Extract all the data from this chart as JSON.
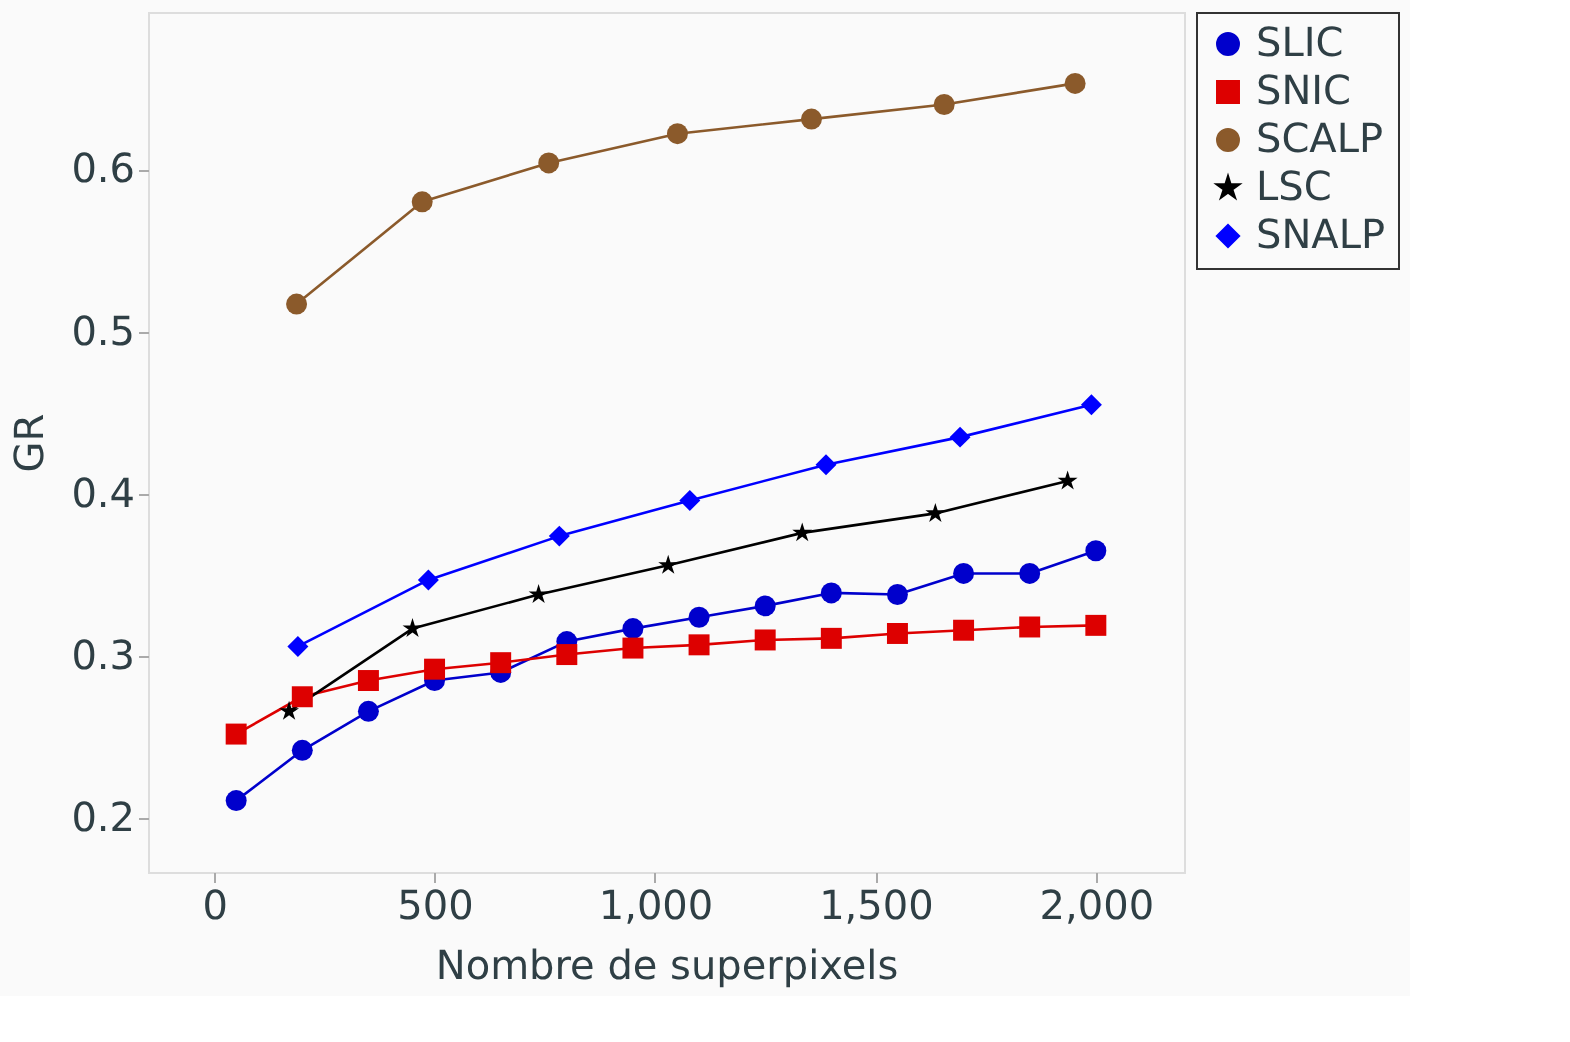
{
  "chart_data": {
    "type": "line",
    "xlabel": "Nombre de superpixels",
    "ylabel": "GR",
    "xlim": [
      -150,
      2200
    ],
    "ylim": [
      0.167,
      0.697
    ],
    "xticks": [
      0,
      500,
      {
        "value": 1000,
        "label": "1,000"
      },
      {
        "value": 1500,
        "label": "1,500"
      },
      {
        "value": 2000,
        "label": "2,000"
      }
    ],
    "yticks": [
      0.2,
      0.3,
      0.4,
      0.5,
      0.6
    ],
    "grid": false,
    "legend": "top right",
    "line_style": "solid",
    "series": [
      {
        "name": "SLIC",
        "color": "#0000cc",
        "marker": "circle",
        "x": [
          50,
          200,
          350,
          500,
          650,
          800,
          950,
          1100,
          1250,
          1400,
          1550,
          1700,
          1850,
          2000
        ],
        "values": [
          0.211,
          0.242,
          0.266,
          0.285,
          0.29,
          0.309,
          0.317,
          0.324,
          0.331,
          0.339,
          0.338,
          0.351,
          0.351,
          0.365
        ]
      },
      {
        "name": "SNIC",
        "color": "#dd0000",
        "marker": "square",
        "x": [
          50,
          200,
          350,
          500,
          650,
          800,
          950,
          1100,
          1250,
          1400,
          1550,
          1700,
          1850,
          2000
        ],
        "values": [
          0.252,
          0.275,
          0.285,
          0.292,
          0.296,
          0.301,
          0.305,
          0.307,
          0.31,
          0.311,
          0.314,
          0.316,
          0.318,
          0.319
        ]
      },
      {
        "name": "SCALP",
        "color": "#8b5a2b",
        "marker": "circle",
        "x": [
          187,
          472,
          759,
          1051,
          1355,
          1656,
          1953
        ],
        "values": [
          0.517,
          0.58,
          0.604,
          0.622,
          0.631,
          0.64,
          0.653
        ]
      },
      {
        "name": "LSC",
        "color": "#000000",
        "marker": "star",
        "x": [
          170,
          450,
          736,
          1030,
          1334,
          1636,
          1936
        ],
        "values": [
          0.266,
          0.317,
          0.338,
          0.356,
          0.376,
          0.388,
          0.408
        ]
      },
      {
        "name": "SNALP",
        "color": "#0000ff",
        "marker": "diamond",
        "x": [
          190,
          486,
          783,
          1079,
          1388,
          1692,
          1990
        ],
        "values": [
          0.306,
          0.347,
          0.374,
          0.396,
          0.418,
          0.435,
          0.455
        ]
      }
    ]
  }
}
